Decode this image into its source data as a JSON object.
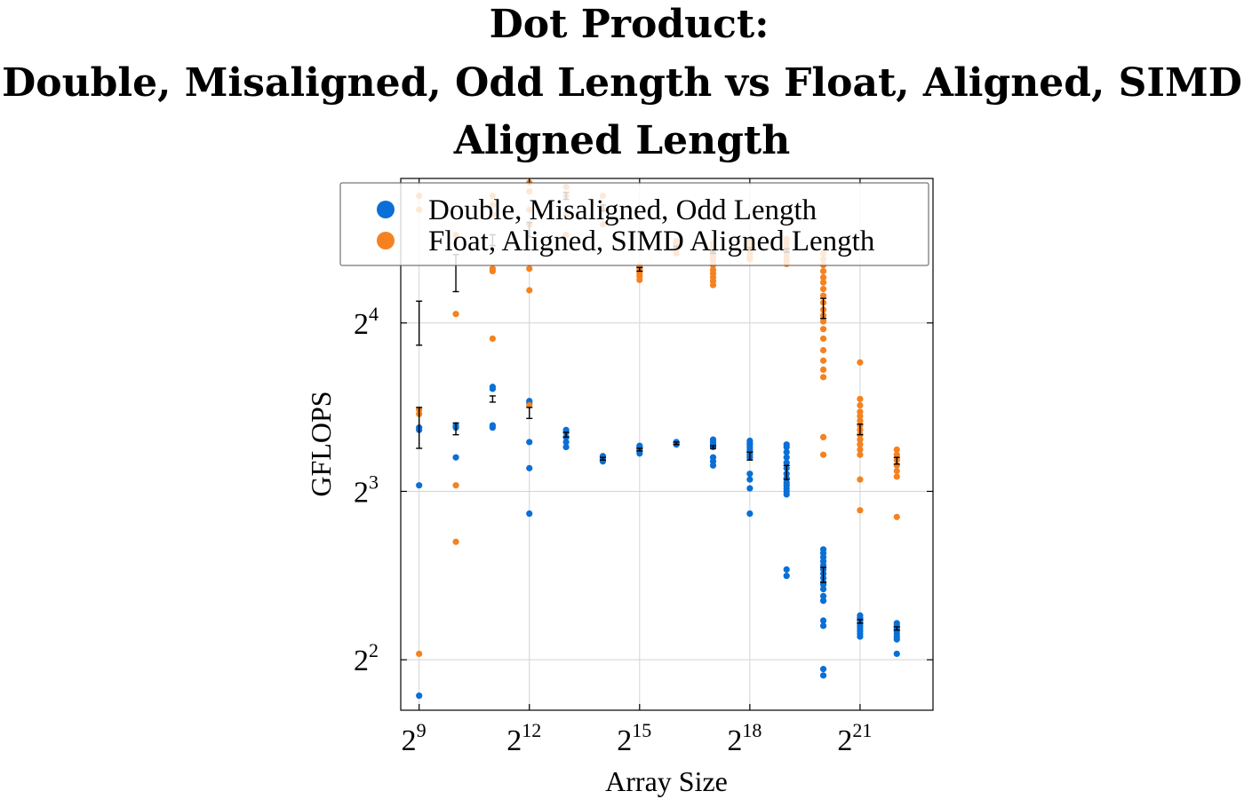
{
  "chart_data": {
    "type": "scatter",
    "title_lines": [
      "Dot Product:",
      "Double, Misaligned, Odd Length vs Float, Aligned, SIMD",
      "Aligned Length"
    ],
    "xlabel": "Array Size",
    "ylabel": "GFLOPS",
    "x_scale": "log2",
    "y_scale": "log2",
    "xlim": [
      362,
      8300000
    ],
    "ylim": [
      3.25,
      29
    ],
    "x_ticks": [
      {
        "base": "2",
        "exp": "9",
        "value": 512
      },
      {
        "base": "2",
        "exp": "12",
        "value": 4096
      },
      {
        "base": "2",
        "exp": "15",
        "value": 32768
      },
      {
        "base": "2",
        "exp": "18",
        "value": 262144
      },
      {
        "base": "2",
        "exp": "21",
        "value": 2097152
      }
    ],
    "y_ticks": [
      {
        "base": "2",
        "exp": "2",
        "value": 4
      },
      {
        "base": "2",
        "exp": "3",
        "value": 8
      },
      {
        "base": "2",
        "exp": "4",
        "value": 16
      }
    ],
    "grid": true,
    "legend_position": "top",
    "series": [
      {
        "name": "Double, Misaligned, Odd Length",
        "color": "#0a6fd6",
        "points": [
          {
            "x": 512,
            "ys": [
              3.45,
              8.2,
              10.3,
              10.4
            ]
          },
          {
            "x": 1024,
            "ys": [
              9.2,
              10.4,
              10.5
            ]
          },
          {
            "x": 2048,
            "ys": [
              10.4,
              10.5,
              12.2,
              12.3
            ]
          },
          {
            "x": 4096,
            "ys": [
              7.3,
              8.8,
              9.8,
              11.5,
              11.6
            ]
          },
          {
            "x": 8192,
            "ys": [
              9.6,
              9.8,
              10.0,
              10.2,
              10.3
            ]
          },
          {
            "x": 16384,
            "ys": [
              9.05,
              9.1,
              9.2,
              9.25
            ]
          },
          {
            "x": 32768,
            "ys": [
              9.35,
              9.45,
              9.55,
              9.6,
              9.65
            ]
          },
          {
            "x": 65536,
            "ys": [
              9.7,
              9.75,
              9.8
            ]
          },
          {
            "x": 131072,
            "ys": [
              8.9,
              9.05,
              9.2,
              9.6,
              9.7,
              9.8,
              9.9
            ]
          },
          {
            "x": 262144,
            "ys": [
              7.3,
              8.1,
              8.4,
              8.6,
              9.2,
              9.3,
              9.4,
              9.5,
              9.6,
              9.7,
              9.75,
              9.85
            ]
          },
          {
            "x": 524288,
            "ys": [
              5.65,
              5.8,
              7.9,
              8.0,
              8.1,
              8.2,
              8.3,
              8.45,
              8.6,
              8.8,
              9.0,
              9.2,
              9.4,
              9.6,
              9.7
            ]
          },
          {
            "x": 1048576,
            "ys": [
              3.75,
              3.85,
              4.6,
              4.7,
              5.1,
              5.2,
              5.35,
              5.45,
              5.5,
              5.6,
              5.7,
              5.8,
              5.9,
              6.0,
              6.1,
              6.2,
              6.3
            ]
          },
          {
            "x": 2097152,
            "ys": [
              4.4,
              4.45,
              4.5,
              4.55,
              4.6,
              4.65,
              4.7,
              4.75,
              4.8
            ]
          },
          {
            "x": 4194304,
            "ys": [
              4.1,
              4.35,
              4.4,
              4.45,
              4.5,
              4.55,
              4.6,
              4.65
            ]
          }
        ]
      },
      {
        "name": "Float, Aligned, SIMD Aligned Length",
        "color": "#f58220",
        "points": [
          {
            "x": 512,
            "ys": [
              4.1,
              11.0,
              11.2,
              25.5,
              27.0
            ]
          },
          {
            "x": 1024,
            "ys": [
              6.5,
              8.2,
              16.6,
              23.0
            ]
          },
          {
            "x": 2048,
            "ys": [
              15.0,
              19.8,
              20.0,
              25.0,
              26.0,
              27.0
            ]
          },
          {
            "x": 4096,
            "ys": [
              11.4,
              18.3,
              20.0,
              24.0,
              25.5,
              27.5,
              28.5
            ]
          },
          {
            "x": 8192,
            "ys": [
              23.0,
              25.0,
              27.0,
              28.0
            ]
          },
          {
            "x": 16384,
            "ys": [
              24.0,
              25.5,
              27.0
            ]
          },
          {
            "x": 32768,
            "ys": [
              19.1,
              19.4,
              19.6,
              19.8,
              20.0,
              20.2
            ]
          },
          {
            "x": 65536,
            "ys": [
              21.3,
              21.5,
              21.8,
              22.0,
              22.2,
              22.4
            ]
          },
          {
            "x": 131072,
            "ys": [
              18.7,
              19.0,
              19.3,
              19.6,
              19.9,
              20.3,
              20.7,
              21.0,
              21.3,
              21.6,
              21.9,
              22.2
            ]
          },
          {
            "x": 262144,
            "ys": [
              20.8,
              21.0,
              21.3,
              21.6,
              21.9,
              22.2,
              22.5
            ]
          },
          {
            "x": 524288,
            "ys": [
              20.4,
              20.7,
              21.0,
              21.4,
              21.8,
              22.2,
              22.6
            ]
          },
          {
            "x": 1048576,
            "ys": [
              9.3,
              10.0,
              12.8,
              13.2,
              13.7,
              14.3,
              15.0,
              15.6,
              16.1,
              16.5,
              16.9,
              17.4,
              17.9,
              18.4,
              18.9,
              19.3,
              19.8,
              20.3,
              20.8,
              21.3
            ]
          },
          {
            "x": 2097152,
            "ys": [
              7.4,
              8.4,
              9.3,
              9.5,
              9.7,
              9.9,
              10.1,
              10.3,
              10.5,
              10.7,
              10.9,
              11.1,
              11.4,
              11.7,
              13.6
            ]
          },
          {
            "x": 4194304,
            "ys": [
              7.2,
              8.5,
              8.7,
              8.9,
              9.1,
              9.3,
              9.5
            ]
          }
        ]
      }
    ],
    "error_bars": [
      {
        "x": 512,
        "low": 9.55,
        "high": 11.3
      },
      {
        "x": 512,
        "low": 14.6,
        "high": 17.5
      },
      {
        "x": 1024,
        "low": 10.1,
        "high": 10.6
      },
      {
        "x": 1024,
        "low": 18.2,
        "high": 21.2
      },
      {
        "x": 2048,
        "low": 11.55,
        "high": 11.85
      },
      {
        "x": 2048,
        "low": 22.0,
        "high": 23.0
      },
      {
        "x": 4096,
        "low": 10.8,
        "high": 11.3
      },
      {
        "x": 4096,
        "low": 22.8,
        "high": 24.2
      },
      {
        "x": 8192,
        "low": 10.0,
        "high": 10.2
      },
      {
        "x": 8192,
        "low": 26.6,
        "high": 27.4
      },
      {
        "x": 16384,
        "low": 9.1,
        "high": 9.2
      },
      {
        "x": 16384,
        "low": 25.4,
        "high": 26.0
      },
      {
        "x": 32768,
        "low": 9.45,
        "high": 9.55
      },
      {
        "x": 32768,
        "low": 19.8,
        "high": 20.1
      },
      {
        "x": 65536,
        "low": 9.7,
        "high": 9.8
      },
      {
        "x": 65536,
        "low": 21.8,
        "high": 21.95
      },
      {
        "x": 131072,
        "low": 9.55,
        "high": 9.65
      },
      {
        "x": 131072,
        "low": 21.3,
        "high": 21.5
      },
      {
        "x": 262144,
        "low": 9.1,
        "high": 9.4
      },
      {
        "x": 262144,
        "low": 21.6,
        "high": 21.8
      },
      {
        "x": 524288,
        "low": 8.4,
        "high": 8.9
      },
      {
        "x": 524288,
        "low": 21.4,
        "high": 21.7
      },
      {
        "x": 1048576,
        "low": 5.5,
        "high": 5.85
      },
      {
        "x": 1048576,
        "low": 16.3,
        "high": 17.7
      },
      {
        "x": 2097152,
        "low": 4.65,
        "high": 4.72
      },
      {
        "x": 2097152,
        "low": 10.1,
        "high": 10.55
      },
      {
        "x": 4194304,
        "low": 4.52,
        "high": 4.58
      },
      {
        "x": 4194304,
        "low": 8.95,
        "high": 9.2
      }
    ]
  }
}
